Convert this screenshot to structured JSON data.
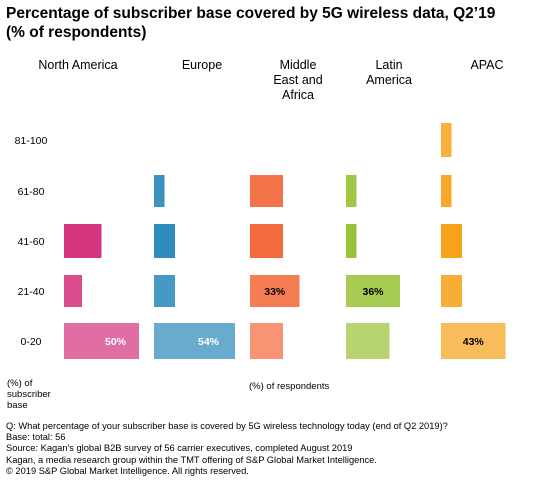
{
  "title_line1": "Percentage of subscriber base covered by 5G wireless data, Q2’19",
  "title_line2": "(% of respondents)",
  "chart_data": {
    "type": "bar",
    "orientation": "horizontal",
    "layout": "small-multiples",
    "categories": [
      "0-20",
      "21-40",
      "41-60",
      "61-80",
      "81-100"
    ],
    "y_axis_title": [
      "(%) of",
      "subscriber",
      "base"
    ],
    "xlabel": "(%) of respondents",
    "x_range": [
      0,
      60
    ],
    "grid": false,
    "series": [
      {
        "name": "North America",
        "header": [
          "North America"
        ],
        "color": "#d4357e",
        "values": [
          50,
          12,
          25,
          0,
          0
        ],
        "labels": [
          "50%",
          "",
          "",
          "",
          ""
        ]
      },
      {
        "name": "Europe",
        "header": [
          "Europe"
        ],
        "color": "#2e8bbd",
        "values": [
          54,
          14,
          14,
          7,
          0
        ],
        "labels": [
          "54%",
          "",
          "",
          "",
          ""
        ]
      },
      {
        "name": "Middle East and Africa",
        "header": [
          "Middle",
          "East and",
          "Africa"
        ],
        "color": "#f26b3c",
        "values": [
          22,
          33,
          22,
          22,
          0
        ],
        "labels": [
          "",
          "33%",
          "",
          "",
          ""
        ]
      },
      {
        "name": "Latin America",
        "header": [
          "Latin",
          "America"
        ],
        "color": "#9bc33a",
        "values": [
          29,
          36,
          7,
          7,
          0
        ],
        "labels": [
          "",
          "36%",
          "",
          "",
          ""
        ]
      },
      {
        "name": "APAC",
        "header": [
          "APAC"
        ],
        "color": "#f7a21b",
        "values": [
          43,
          14,
          14,
          7,
          7
        ],
        "labels": [
          "43%",
          "",
          "",
          "",
          ""
        ]
      }
    ]
  },
  "footer": {
    "question": "Q: What percentage of your subscriber base is covered by 5G wireless technology today (end of Q2 2019)?",
    "base": "Base: total: 56",
    "source": "Source: Kagan's global B2B survey of 56 carrier executives, completed August 2019",
    "kagan": "Kagan, a media research group within the TMT offering of S&P Global Market Intelligence.",
    "copyright": "© 2019 S&P Global Market Intelligence. All rights reserved."
  }
}
